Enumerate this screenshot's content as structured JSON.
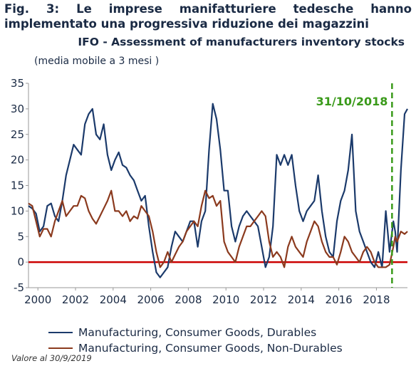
{
  "figure_title": {
    "line1": "Fig. 3: Le imprese manifatturiere tedesche hanno",
    "line2": "implementato una progressiva riduzione dei magazzini"
  },
  "footnote": "Valore al 30/9/2019",
  "chart_data": {
    "type": "line",
    "title": "IFO - Assessment of manufacturers inventory stocks",
    "subtitle": "(media mobile a 3 mesi )",
    "xlim": [
      1999.5,
      2019.65
    ],
    "ylim": [
      -5,
      35
    ],
    "x_ticks": [
      2000,
      2002,
      2004,
      2006,
      2008,
      2010,
      2012,
      2014,
      2016,
      2018
    ],
    "y_ticks": [
      -5,
      0,
      5,
      10,
      15,
      20,
      25,
      30,
      35
    ],
    "grid": false,
    "legend_position": "bottom",
    "reference_line": {
      "y": 0,
      "color": "#cc0000"
    },
    "annotation": {
      "x": 2018.83,
      "label": "31/10/2018",
      "color": "#3a9a1a",
      "style": "dashed"
    },
    "series": [
      {
        "name": "Manufacturing, Consumer Goods, Durables",
        "color": "#1b3a6b",
        "points": [
          [
            1999.5,
            11
          ],
          [
            1999.7,
            10.5
          ],
          [
            1999.9,
            9.5
          ],
          [
            2000.1,
            6
          ],
          [
            2000.3,
            7
          ],
          [
            2000.5,
            11
          ],
          [
            2000.7,
            11.5
          ],
          [
            2000.9,
            9
          ],
          [
            2001.1,
            8
          ],
          [
            2001.3,
            12
          ],
          [
            2001.5,
            17
          ],
          [
            2001.7,
            20
          ],
          [
            2001.9,
            23
          ],
          [
            2002.1,
            22
          ],
          [
            2002.3,
            21
          ],
          [
            2002.5,
            27
          ],
          [
            2002.7,
            29
          ],
          [
            2002.9,
            30
          ],
          [
            2003.1,
            25
          ],
          [
            2003.3,
            24
          ],
          [
            2003.5,
            27
          ],
          [
            2003.7,
            21
          ],
          [
            2003.9,
            18
          ],
          [
            2004.1,
            20
          ],
          [
            2004.3,
            21.5
          ],
          [
            2004.5,
            19
          ],
          [
            2004.7,
            18.5
          ],
          [
            2004.9,
            17
          ],
          [
            2005.1,
            16
          ],
          [
            2005.3,
            14
          ],
          [
            2005.5,
            12
          ],
          [
            2005.7,
            13
          ],
          [
            2005.9,
            7
          ],
          [
            2006.1,
            2
          ],
          [
            2006.3,
            -2
          ],
          [
            2006.5,
            -3
          ],
          [
            2006.7,
            -2
          ],
          [
            2006.9,
            -1
          ],
          [
            2007.1,
            3
          ],
          [
            2007.3,
            6
          ],
          [
            2007.5,
            5
          ],
          [
            2007.7,
            4
          ],
          [
            2007.9,
            6
          ],
          [
            2008.1,
            8
          ],
          [
            2008.3,
            8
          ],
          [
            2008.5,
            3
          ],
          [
            2008.7,
            8
          ],
          [
            2008.9,
            10
          ],
          [
            2009.1,
            22
          ],
          [
            2009.3,
            31
          ],
          [
            2009.5,
            28
          ],
          [
            2009.7,
            22
          ],
          [
            2009.9,
            14
          ],
          [
            2010.1,
            14
          ],
          [
            2010.3,
            7
          ],
          [
            2010.5,
            4
          ],
          [
            2010.7,
            7
          ],
          [
            2010.9,
            9
          ],
          [
            2011.1,
            10
          ],
          [
            2011.3,
            9
          ],
          [
            2011.5,
            8
          ],
          [
            2011.7,
            7
          ],
          [
            2011.9,
            3
          ],
          [
            2012.1,
            -1
          ],
          [
            2012.3,
            1
          ],
          [
            2012.5,
            7
          ],
          [
            2012.7,
            21
          ],
          [
            2012.9,
            19
          ],
          [
            2013.1,
            21
          ],
          [
            2013.3,
            19
          ],
          [
            2013.5,
            21
          ],
          [
            2013.7,
            15
          ],
          [
            2013.9,
            10
          ],
          [
            2014.1,
            8
          ],
          [
            2014.3,
            10
          ],
          [
            2014.5,
            11
          ],
          [
            2014.7,
            12
          ],
          [
            2014.9,
            17
          ],
          [
            2015.1,
            10
          ],
          [
            2015.3,
            5
          ],
          [
            2015.5,
            2
          ],
          [
            2015.7,
            1
          ],
          [
            2015.9,
            8
          ],
          [
            2016.1,
            12
          ],
          [
            2016.3,
            14
          ],
          [
            2016.5,
            18
          ],
          [
            2016.7,
            25
          ],
          [
            2016.9,
            10
          ],
          [
            2017.1,
            6
          ],
          [
            2017.3,
            4
          ],
          [
            2017.5,
            2
          ],
          [
            2017.7,
            0
          ],
          [
            2017.9,
            -1
          ],
          [
            2018.1,
            2
          ],
          [
            2018.3,
            -1
          ],
          [
            2018.5,
            10
          ],
          [
            2018.7,
            2
          ],
          [
            2018.9,
            8
          ],
          [
            2019.0,
            6
          ],
          [
            2019.1,
            2
          ],
          [
            2019.3,
            18
          ],
          [
            2019.5,
            29
          ],
          [
            2019.65,
            30
          ]
        ]
      },
      {
        "name": "Manufacturing, Consumer Goods, Non-Durables",
        "color": "#8b3a1e",
        "points": [
          [
            1999.5,
            11.5
          ],
          [
            1999.7,
            11
          ],
          [
            1999.9,
            8
          ],
          [
            2000.1,
            5
          ],
          [
            2000.3,
            6.5
          ],
          [
            2000.5,
            6.5
          ],
          [
            2000.7,
            5
          ],
          [
            2000.9,
            8
          ],
          [
            2001.1,
            10
          ],
          [
            2001.3,
            12
          ],
          [
            2001.5,
            9
          ],
          [
            2001.7,
            10
          ],
          [
            2001.9,
            11
          ],
          [
            2002.1,
            11
          ],
          [
            2002.3,
            13
          ],
          [
            2002.5,
            12.5
          ],
          [
            2002.7,
            10
          ],
          [
            2002.9,
            8.5
          ],
          [
            2003.1,
            7.5
          ],
          [
            2003.3,
            9
          ],
          [
            2003.5,
            10.5
          ],
          [
            2003.7,
            12
          ],
          [
            2003.9,
            14
          ],
          [
            2004.1,
            10
          ],
          [
            2004.3,
            10
          ],
          [
            2004.5,
            9
          ],
          [
            2004.7,
            10
          ],
          [
            2004.9,
            8
          ],
          [
            2005.1,
            9
          ],
          [
            2005.3,
            8.5
          ],
          [
            2005.5,
            11
          ],
          [
            2005.7,
            10
          ],
          [
            2005.9,
            9
          ],
          [
            2006.1,
            6
          ],
          [
            2006.3,
            2
          ],
          [
            2006.5,
            -1
          ],
          [
            2006.7,
            0
          ],
          [
            2006.9,
            2
          ],
          [
            2007.1,
            0
          ],
          [
            2007.3,
            1.5
          ],
          [
            2007.5,
            3
          ],
          [
            2007.7,
            4
          ],
          [
            2007.9,
            6
          ],
          [
            2008.1,
            7
          ],
          [
            2008.3,
            8
          ],
          [
            2008.5,
            7
          ],
          [
            2008.7,
            11
          ],
          [
            2008.9,
            14
          ],
          [
            2009.1,
            12.5
          ],
          [
            2009.3,
            13
          ],
          [
            2009.5,
            11
          ],
          [
            2009.7,
            12
          ],
          [
            2009.9,
            4
          ],
          [
            2010.1,
            2
          ],
          [
            2010.3,
            1
          ],
          [
            2010.5,
            0
          ],
          [
            2010.7,
            3
          ],
          [
            2010.9,
            5
          ],
          [
            2011.1,
            7
          ],
          [
            2011.3,
            7
          ],
          [
            2011.5,
            8
          ],
          [
            2011.7,
            9
          ],
          [
            2011.9,
            10
          ],
          [
            2012.1,
            9
          ],
          [
            2012.3,
            4
          ],
          [
            2012.5,
            1
          ],
          [
            2012.7,
            2
          ],
          [
            2012.9,
            1
          ],
          [
            2013.1,
            -1
          ],
          [
            2013.3,
            3
          ],
          [
            2013.5,
            5
          ],
          [
            2013.7,
            3
          ],
          [
            2013.9,
            2
          ],
          [
            2014.1,
            1
          ],
          [
            2014.3,
            4
          ],
          [
            2014.5,
            6
          ],
          [
            2014.7,
            8
          ],
          [
            2014.9,
            7
          ],
          [
            2015.1,
            4
          ],
          [
            2015.3,
            2
          ],
          [
            2015.5,
            1
          ],
          [
            2015.7,
            1
          ],
          [
            2015.9,
            -0.5
          ],
          [
            2016.1,
            2
          ],
          [
            2016.3,
            5
          ],
          [
            2016.5,
            4
          ],
          [
            2016.7,
            2
          ],
          [
            2016.9,
            1
          ],
          [
            2017.1,
            0
          ],
          [
            2017.3,
            2
          ],
          [
            2017.5,
            3
          ],
          [
            2017.7,
            2
          ],
          [
            2017.9,
            0
          ],
          [
            2018.1,
            -1
          ],
          [
            2018.3,
            -1
          ],
          [
            2018.5,
            -1
          ],
          [
            2018.7,
            -0.5
          ],
          [
            2018.9,
            3
          ],
          [
            2019.0,
            5
          ],
          [
            2019.1,
            4
          ],
          [
            2019.3,
            6
          ],
          [
            2019.5,
            5.5
          ],
          [
            2019.65,
            6
          ]
        ]
      }
    ]
  }
}
